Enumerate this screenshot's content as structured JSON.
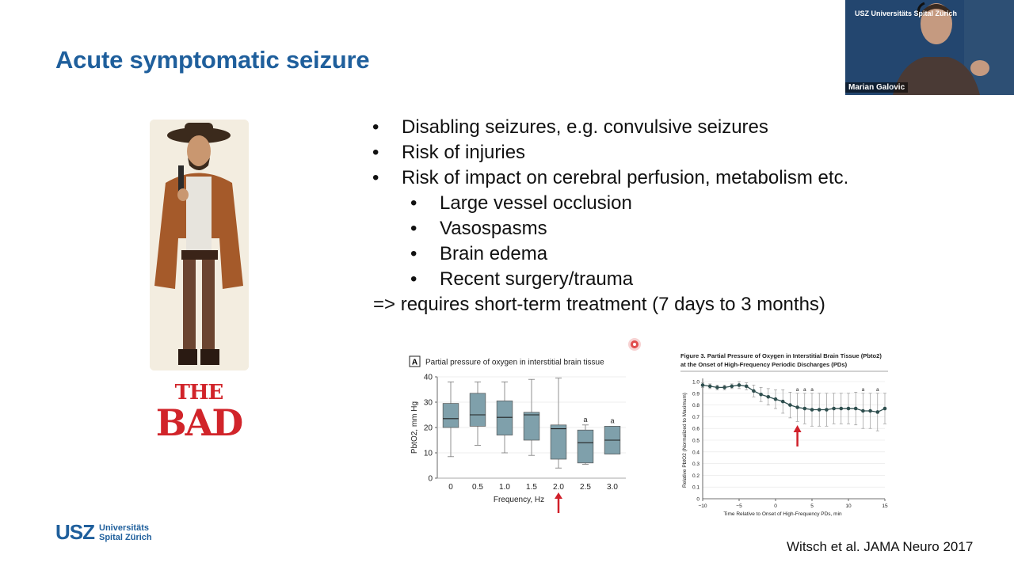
{
  "slide": {
    "title": "Acute symptomatic seizure",
    "poster_top": "THE",
    "poster_bottom": "BAD",
    "bullets": [
      {
        "text": "Disabling seizures, e.g. convulsive seizures",
        "level": 0
      },
      {
        "text": "Risk of injuries",
        "level": 0
      },
      {
        "text": "Risk of impact on cerebral perfusion, metabolism etc.",
        "level": 0
      },
      {
        "text": "Large vessel occlusion",
        "level": 1
      },
      {
        "text": "Vasospasms",
        "level": 1
      },
      {
        "text": "Brain edema",
        "level": 1
      },
      {
        "text": "Recent surgery/trauma",
        "level": 1
      }
    ],
    "bullet_glyph": "•",
    "conclusion": "=> requires short-term treatment (7 days to 3 months)",
    "citation": "Witsch et al. JAMA Neuro 2017",
    "logo_mark": "USZ",
    "logo_line1": "Universitäts",
    "logo_line2": "Spital Zürich"
  },
  "video": {
    "speaker_name": "Marian Galovic",
    "logo_text": "USZ Universitäts Spital Zürich"
  },
  "colors": {
    "title": "#1f5f9c",
    "box_fill": "#7fa0ab",
    "arrow": "#d0202a",
    "line": "#2f4f4f"
  },
  "chart_data": [
    {
      "type": "box",
      "panel_label": "A",
      "title": "Partial pressure of oxygen in interstitial brain tissue",
      "xlabel": "Frequency, Hz",
      "ylabel": "PbtO2, mm Hg",
      "categories": [
        "0",
        "0.5",
        "1.0",
        "1.5",
        "2.0",
        "2.5",
        "3.0"
      ],
      "ylim": [
        0,
        40
      ],
      "yticks": [
        0,
        10,
        20,
        30,
        40
      ],
      "boxes": [
        {
          "min": 8.5,
          "q1": 20,
          "median": 23.5,
          "q3": 29.5,
          "max": 38
        },
        {
          "min": 13,
          "q1": 20.5,
          "median": 25,
          "q3": 33.5,
          "max": 38
        },
        {
          "min": 10,
          "q1": 17,
          "median": 24,
          "q3": 30.5,
          "max": 38
        },
        {
          "min": 9,
          "q1": 15,
          "median": 25,
          "q3": 26,
          "max": 39
        },
        {
          "min": 4,
          "q1": 7.5,
          "median": 19.5,
          "q3": 21,
          "max": 39.5
        },
        {
          "min": 5.5,
          "q1": 6,
          "median": 14,
          "q3": 19,
          "max": 21
        },
        {
          "min": 9.5,
          "q1": 9.5,
          "median": 15,
          "q3": 20.5,
          "max": 20.5
        }
      ],
      "annotations": [
        "",
        "",
        "",
        "",
        "",
        "a",
        "a"
      ],
      "arrow_at": "2.0"
    },
    {
      "type": "line",
      "title": "Figure 3. Partial Pressure of Oxygen in Interstitial Brain Tissue (Pbto2) at the Onset of High-Frequency Periodic Discharges (PDs)",
      "xlabel": "Time Relative to Onset of High-Frequency PDs, min",
      "ylabel": "Relative PbtO2 (Normalized to Maximum)",
      "xlim": [
        -10,
        15
      ],
      "ylim": [
        0,
        1.0
      ],
      "xticks": [
        -10,
        -5,
        0,
        5,
        10,
        15
      ],
      "yticks": [
        0,
        0.1,
        0.2,
        0.3,
        0.4,
        0.5,
        0.6,
        0.7,
        0.8,
        0.9,
        1.0
      ],
      "x": [
        -10,
        -9,
        -8,
        -7,
        -6,
        -5,
        -4,
        -3,
        -2,
        -1,
        0,
        1,
        2,
        3,
        4,
        5,
        6,
        7,
        8,
        9,
        10,
        11,
        12,
        13,
        14,
        15
      ],
      "y": [
        0.97,
        0.96,
        0.95,
        0.95,
        0.96,
        0.97,
        0.96,
        0.92,
        0.89,
        0.87,
        0.85,
        0.83,
        0.8,
        0.78,
        0.77,
        0.76,
        0.76,
        0.76,
        0.77,
        0.77,
        0.77,
        0.77,
        0.75,
        0.75,
        0.74,
        0.77
      ],
      "err": [
        0.02,
        0.02,
        0.02,
        0.02,
        0.02,
        0.03,
        0.03,
        0.05,
        0.06,
        0.07,
        0.08,
        0.1,
        0.11,
        0.12,
        0.13,
        0.14,
        0.14,
        0.14,
        0.13,
        0.13,
        0.13,
        0.14,
        0.15,
        0.15,
        0.16,
        0.13
      ],
      "annotations": [
        {
          "x": 3,
          "text": "a"
        },
        {
          "x": 4,
          "text": "a"
        },
        {
          "x": 5,
          "text": "a"
        },
        {
          "x": 12,
          "text": "a"
        },
        {
          "x": 14,
          "text": "a"
        }
      ],
      "arrow_at": 3
    }
  ]
}
